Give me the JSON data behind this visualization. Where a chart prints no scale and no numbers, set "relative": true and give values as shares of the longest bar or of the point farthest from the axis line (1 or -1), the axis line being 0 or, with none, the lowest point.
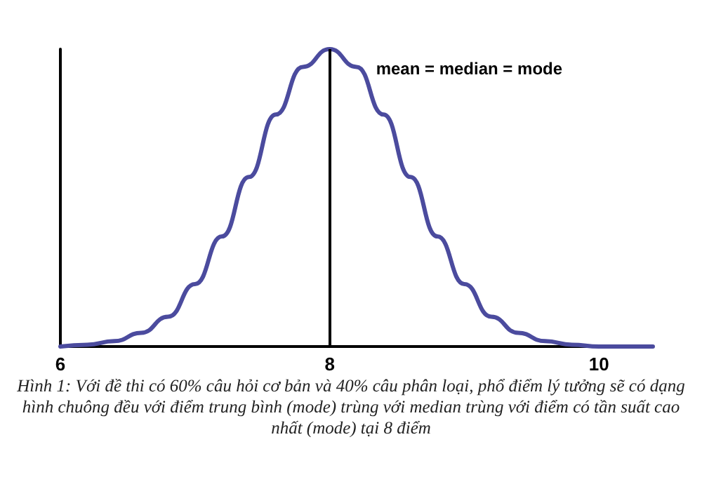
{
  "chart_data": {
    "type": "line",
    "relative": true,
    "x": [
      6,
      6.2,
      6.4,
      6.6,
      6.8,
      7,
      7.2,
      7.4,
      7.6,
      7.8,
      8,
      8.2,
      8.4,
      8.6,
      8.8,
      9,
      9.2,
      9.4,
      9.6,
      9.8,
      10,
      10.2,
      10.4
    ],
    "series": [
      {
        "color": "#4b4b9e",
        "values": [
          0,
          0.006,
          0.018,
          0.046,
          0.1,
          0.21,
          0.37,
          0.57,
          0.78,
          0.94,
          1,
          0.94,
          0.78,
          0.57,
          0.37,
          0.21,
          0.1,
          0.046,
          0.018,
          0.006,
          0,
          0,
          0
        ]
      }
    ],
    "xlim": [
      6,
      10.4
    ],
    "xticks": [
      6,
      8,
      10
    ],
    "ref_lines": [
      {
        "axis": "x",
        "value": 8,
        "label": "mean = median = mode",
        "color": "#000000"
      }
    ],
    "marker": "none",
    "line_style": "solid",
    "grid": false,
    "annotations": [
      "Hình 1: Với đề thi có 60% câu hỏi cơ bản và 40% câu phân loại, phổ điểm lý tưởng sẽ có dạng hình chuông đều với điểm trung bình (mode) trùng với median trùng với điểm có tần suất cao nhất (mode) tại 8 điểm"
    ]
  }
}
